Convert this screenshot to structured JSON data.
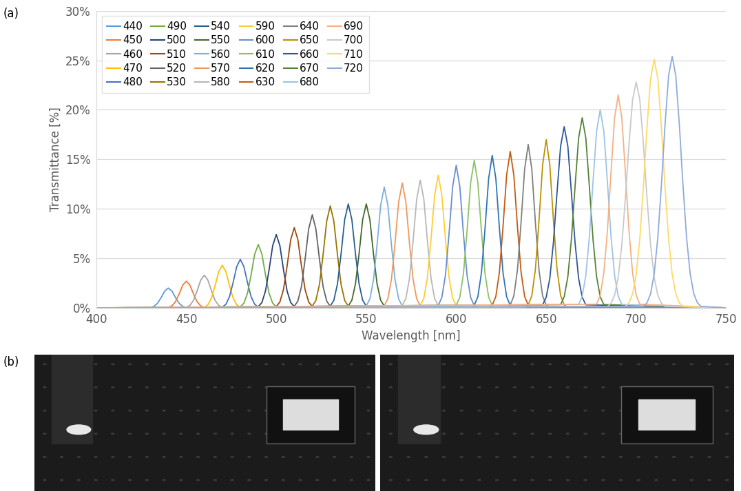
{
  "chart_data": {
    "type": "line",
    "x_label": "Wavelength [nm]",
    "y_label": "Transmittance [%]",
    "xlim": [
      400,
      750
    ],
    "xticks": [
      400,
      450,
      500,
      550,
      600,
      650,
      700,
      750
    ],
    "ylim": [
      0,
      30
    ],
    "yticks": [
      {
        "value": 0,
        "label": "0%"
      },
      {
        "value": 5,
        "label": "5%"
      },
      {
        "value": 10,
        "label": "10%"
      },
      {
        "value": 15,
        "label": "15%"
      },
      {
        "value": 20,
        "label": "20%"
      },
      {
        "value": 25,
        "label": "25%"
      },
      {
        "value": 30,
        "label": "30%"
      }
    ],
    "grid": true,
    "legend": "upper left",
    "series": [
      {
        "name": "440",
        "color": "#5B9BD5",
        "x": [
          400,
          428,
          430,
          432,
          434,
          436,
          438,
          440,
          442,
          444,
          446,
          448,
          450,
          452,
          750
        ],
        "values": [
          0,
          0.01,
          0.03,
          0.15,
          0.46,
          1.04,
          1.7,
          2.0,
          1.7,
          1.04,
          0.46,
          0.15,
          0.03,
          0.01,
          0
        ]
      },
      {
        "name": "450",
        "color": "#ED7D31",
        "x": [
          400,
          438,
          440,
          442,
          444,
          446,
          448,
          450,
          452,
          454,
          456,
          458,
          460,
          462,
          750
        ],
        "values": [
          0,
          0.01,
          0.05,
          0.2,
          0.62,
          1.4,
          2.29,
          2.7,
          2.29,
          1.4,
          0.62,
          0.2,
          0.05,
          0.01,
          0
        ]
      },
      {
        "name": "460",
        "color": "#A5A5A5",
        "x": [
          400,
          448,
          450,
          452,
          454,
          456,
          458,
          460,
          462,
          464,
          466,
          468,
          470,
          472,
          750
        ],
        "values": [
          0,
          0.01,
          0.06,
          0.24,
          0.76,
          1.72,
          2.8,
          3.3,
          2.8,
          1.72,
          0.76,
          0.24,
          0.06,
          0.01,
          0
        ]
      },
      {
        "name": "470",
        "color": "#FFC000",
        "x": [
          400,
          458,
          460,
          462,
          464,
          466,
          468,
          470,
          472,
          474,
          476,
          478,
          480,
          482,
          750
        ],
        "values": [
          0,
          0.01,
          0.07,
          0.31,
          0.99,
          2.24,
          3.65,
          4.3,
          3.65,
          2.24,
          0.99,
          0.31,
          0.07,
          0.01,
          0
        ]
      },
      {
        "name": "480",
        "color": "#4472C4",
        "x": [
          400,
          468,
          470,
          472,
          474,
          476,
          478,
          480,
          482,
          484,
          486,
          488,
          490,
          492,
          750
        ],
        "values": [
          0,
          0.01,
          0.08,
          0.36,
          1.13,
          2.55,
          4.16,
          4.9,
          4.16,
          2.55,
          1.13,
          0.36,
          0.08,
          0.01,
          0
        ]
      },
      {
        "name": "490",
        "color": "#70AD47",
        "x": [
          400,
          478,
          480,
          482,
          484,
          486,
          488,
          490,
          492,
          494,
          496,
          498,
          500,
          502,
          750
        ],
        "values": [
          0,
          0.02,
          0.11,
          0.47,
          1.47,
          3.33,
          5.43,
          6.4,
          5.43,
          3.33,
          1.47,
          0.47,
          0.11,
          0.02,
          0
        ]
      },
      {
        "name": "500",
        "color": "#264478",
        "x": [
          400,
          488,
          490,
          492,
          494,
          496,
          498,
          500,
          502,
          504,
          506,
          508,
          510,
          512,
          750
        ],
        "values": [
          0,
          0.02,
          0.13,
          0.54,
          1.7,
          3.85,
          6.28,
          7.4,
          6.28,
          3.85,
          1.7,
          0.54,
          0.13,
          0.02,
          0
        ]
      },
      {
        "name": "510",
        "color": "#9E480E",
        "x": [
          400,
          498,
          500,
          502,
          504,
          506,
          508,
          510,
          512,
          514,
          516,
          518,
          520,
          522,
          750
        ],
        "values": [
          0,
          0.02,
          0.14,
          0.59,
          1.86,
          4.21,
          6.88,
          8.1,
          6.88,
          4.21,
          1.86,
          0.59,
          0.14,
          0.02,
          0
        ]
      },
      {
        "name": "520",
        "color": "#636363",
        "x": [
          400,
          508,
          510,
          512,
          514,
          516,
          518,
          520,
          522,
          524,
          526,
          528,
          530,
          532,
          750
        ],
        "values": [
          0,
          0.03,
          0.16,
          0.69,
          2.16,
          4.89,
          7.98,
          9.4,
          7.98,
          4.89,
          2.16,
          0.69,
          0.16,
          0.03,
          0
        ]
      },
      {
        "name": "530",
        "color": "#997300",
        "x": [
          400,
          518,
          520,
          522,
          524,
          526,
          528,
          530,
          532,
          534,
          536,
          538,
          540,
          542,
          750
        ],
        "values": [
          0,
          0.03,
          0.18,
          0.75,
          2.37,
          5.36,
          8.74,
          10.3,
          8.74,
          5.36,
          2.37,
          0.75,
          0.18,
          0.03,
          0
        ]
      },
      {
        "name": "540",
        "color": "#255E91",
        "x": [
          400,
          528,
          530,
          532,
          534,
          536,
          538,
          540,
          542,
          544,
          546,
          548,
          550,
          552,
          750
        ],
        "values": [
          0,
          0.03,
          0.18,
          0.77,
          2.42,
          5.46,
          8.91,
          10.5,
          8.91,
          5.46,
          2.42,
          0.77,
          0.18,
          0.03,
          0
        ]
      },
      {
        "name": "550",
        "color": "#43682B",
        "x": [
          400,
          538,
          540,
          542,
          544,
          546,
          548,
          550,
          552,
          554,
          556,
          558,
          560,
          562,
          750
        ],
        "values": [
          0,
          0.03,
          0.18,
          0.77,
          2.42,
          5.46,
          8.91,
          10.5,
          8.91,
          5.46,
          2.42,
          0.77,
          0.18,
          0.03,
          0
        ]
      },
      {
        "name": "560",
        "color": "#7CAFDD",
        "x": [
          400,
          548,
          550,
          552,
          554,
          556,
          558,
          560,
          562,
          564,
          566,
          568,
          570,
          572,
          750
        ],
        "values": [
          0,
          0.04,
          0.21,
          0.89,
          2.81,
          6.34,
          10.36,
          12.2,
          10.36,
          6.34,
          2.81,
          0.89,
          0.21,
          0.04,
          0
        ]
      },
      {
        "name": "570",
        "color": "#F1975A",
        "x": [
          400,
          558,
          560,
          562,
          564,
          566,
          568,
          570,
          572,
          574,
          576,
          578,
          580,
          582,
          750
        ],
        "values": [
          0,
          0.04,
          0.21,
          0.92,
          2.9,
          6.55,
          10.7,
          12.6,
          10.7,
          6.55,
          2.9,
          0.92,
          0.21,
          0.04,
          0
        ]
      },
      {
        "name": "580",
        "color": "#B7B7B7",
        "x": [
          400,
          568,
          570,
          572,
          574,
          576,
          578,
          580,
          582,
          584,
          586,
          588,
          590,
          592,
          750
        ],
        "values": [
          0,
          0.04,
          0.22,
          0.94,
          2.97,
          6.71,
          10.95,
          12.9,
          10.95,
          6.71,
          2.97,
          0.94,
          0.22,
          0.04,
          0
        ]
      },
      {
        "name": "590",
        "color": "#FFCD33",
        "x": [
          400,
          578,
          580,
          582,
          584,
          586,
          588,
          590,
          592,
          594,
          596,
          598,
          600,
          602,
          750
        ],
        "values": [
          0,
          0.04,
          0.23,
          0.98,
          3.08,
          6.97,
          11.38,
          13.4,
          11.38,
          6.97,
          3.08,
          0.98,
          0.23,
          0.04,
          0
        ]
      },
      {
        "name": "600",
        "color": "#698ED0",
        "x": [
          400,
          588,
          590,
          592,
          594,
          596,
          598,
          600,
          602,
          604,
          606,
          608,
          610,
          612,
          750
        ],
        "values": [
          0,
          0.04,
          0.24,
          1.05,
          3.31,
          7.49,
          12.23,
          14.4,
          12.23,
          7.49,
          3.31,
          1.05,
          0.24,
          0.04,
          0
        ]
      },
      {
        "name": "610",
        "color": "#8CC168",
        "x": [
          400,
          598,
          600,
          602,
          604,
          606,
          608,
          610,
          612,
          614,
          616,
          618,
          620,
          622,
          750
        ],
        "values": [
          0,
          0.04,
          0.25,
          1.09,
          3.43,
          7.75,
          12.65,
          14.9,
          12.65,
          7.75,
          3.43,
          1.09,
          0.25,
          0.04,
          0
        ]
      },
      {
        "name": "620",
        "color": "#2E75B6",
        "x": [
          400,
          608,
          610,
          612,
          614,
          616,
          618,
          620,
          622,
          624,
          626,
          628,
          630,
          632,
          750
        ],
        "values": [
          0,
          0.05,
          0.26,
          1.12,
          3.54,
          8.01,
          13.07,
          15.4,
          13.07,
          8.01,
          3.54,
          1.12,
          0.26,
          0.05,
          0
        ]
      },
      {
        "name": "630",
        "color": "#C55A11",
        "x": [
          400,
          618,
          620,
          622,
          624,
          626,
          628,
          630,
          632,
          634,
          636,
          638,
          640,
          642,
          750
        ],
        "values": [
          0,
          0.05,
          0.27,
          1.15,
          3.63,
          8.22,
          13.41,
          15.8,
          13.41,
          8.22,
          3.63,
          1.15,
          0.27,
          0.05,
          0
        ]
      },
      {
        "name": "640",
        "color": "#7F7F7F",
        "x": [
          400,
          628,
          630,
          632,
          634,
          636,
          638,
          640,
          642,
          644,
          646,
          648,
          650,
          652,
          750
        ],
        "values": [
          0,
          0.05,
          0.28,
          1.2,
          3.8,
          8.58,
          14.01,
          16.5,
          14.01,
          8.58,
          3.8,
          1.2,
          0.28,
          0.05,
          0
        ]
      },
      {
        "name": "650",
        "color": "#BF9000",
        "x": [
          400,
          638,
          640,
          642,
          644,
          646,
          648,
          650,
          652,
          654,
          656,
          658,
          660,
          662,
          750
        ],
        "values": [
          0,
          0.05,
          0.29,
          1.24,
          3.91,
          8.84,
          14.43,
          17.0,
          14.43,
          8.84,
          3.91,
          1.24,
          0.29,
          0.05,
          0
        ]
      },
      {
        "name": "660",
        "color": "#2F5597",
        "x": [
          400,
          648,
          650,
          652,
          654,
          656,
          658,
          660,
          662,
          664,
          666,
          668,
          670,
          672,
          750
        ],
        "values": [
          0,
          0.31,
          1.08,
          2.98,
          6.61,
          11.64,
          16.34,
          18.3,
          16.34,
          11.64,
          6.61,
          2.98,
          1.08,
          0.31,
          0
        ]
      },
      {
        "name": "670",
        "color": "#548235",
        "x": [
          400,
          658,
          660,
          662,
          664,
          666,
          668,
          670,
          672,
          674,
          676,
          678,
          680,
          682,
          750
        ],
        "values": [
          0,
          0.33,
          1.13,
          3.13,
          6.93,
          12.21,
          17.15,
          19.2,
          17.15,
          12.21,
          6.93,
          3.13,
          1.13,
          0.33,
          0
        ]
      },
      {
        "name": "680",
        "color": "#9DC3E6",
        "x": [
          400,
          668,
          670,
          672,
          674,
          676,
          678,
          680,
          682,
          684,
          686,
          688,
          690,
          692,
          750
        ],
        "values": [
          0,
          0.34,
          1.18,
          3.26,
          7.22,
          12.72,
          17.86,
          20.0,
          17.86,
          12.72,
          7.22,
          3.26,
          1.18,
          0.34,
          0
        ]
      },
      {
        "name": "690",
        "color": "#F4B183",
        "x": [
          400,
          678,
          680,
          682,
          684,
          686,
          688,
          690,
          692,
          694,
          696,
          698,
          700,
          702,
          750
        ],
        "values": [
          0,
          0.37,
          1.27,
          3.5,
          7.76,
          13.67,
          19.2,
          21.5,
          19.2,
          13.67,
          7.76,
          3.5,
          1.27,
          0.37,
          0
        ]
      },
      {
        "name": "700",
        "color": "#C9C9C9",
        "x": [
          400,
          684,
          686,
          688,
          690,
          692,
          694,
          696,
          698,
          700,
          702,
          704,
          706,
          708,
          710,
          712,
          714,
          716,
          750
        ],
        "values": [
          0,
          0.14,
          0.46,
          1.28,
          3.08,
          6.34,
          11.1,
          16.55,
          21.04,
          22.8,
          21.04,
          16.55,
          11.1,
          6.34,
          3.08,
          1.28,
          0.46,
          0.14,
          0
        ]
      },
      {
        "name": "710",
        "color": "#FFD966",
        "x": [
          400,
          694,
          696,
          698,
          700,
          702,
          704,
          706,
          708,
          710,
          712,
          714,
          716,
          718,
          720,
          722,
          724,
          726,
          750
        ],
        "values": [
          0,
          0.15,
          0.5,
          1.41,
          3.39,
          6.98,
          12.22,
          18.22,
          23.17,
          25.1,
          23.17,
          18.22,
          12.22,
          6.98,
          3.39,
          1.41,
          0.5,
          0.15,
          0
        ]
      },
      {
        "name": "720",
        "color": "#8FAADC",
        "x": [
          400,
          704,
          706,
          708,
          710,
          712,
          714,
          716,
          718,
          720,
          722,
          724,
          726,
          728,
          730,
          732,
          734,
          736,
          750
        ],
        "values": [
          0,
          0.15,
          0.51,
          1.42,
          3.43,
          7.06,
          12.37,
          18.44,
          23.44,
          25.4,
          23.44,
          18.44,
          12.37,
          7.06,
          3.43,
          1.42,
          0.51,
          0.15,
          0
        ]
      }
    ]
  },
  "panel_labels": [
    "(a)",
    "(b)"
  ]
}
